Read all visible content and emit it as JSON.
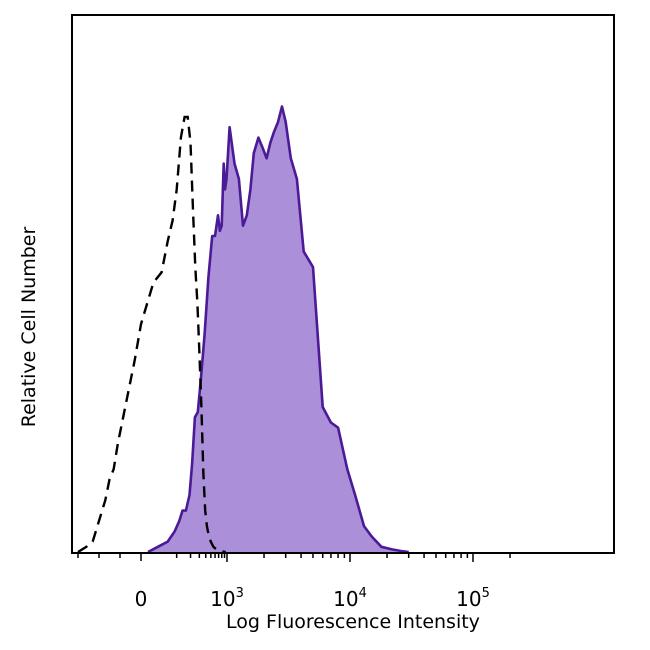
{
  "chart_data": {
    "type": "area",
    "title": "",
    "xlabel": "Log Fluorescence Intensity",
    "ylabel": "Relative Cell Number",
    "x_scale": "biexponential",
    "xlim": [
      -300,
      200000
    ],
    "ylim": [
      0,
      100
    ],
    "grid": false,
    "legend": "none",
    "x_ticks": [
      {
        "value": 0,
        "base": "0",
        "exp": ""
      },
      {
        "value": 1000,
        "base": "10",
        "exp": "3"
      },
      {
        "value": 10000,
        "base": "10",
        "exp": "4"
      },
      {
        "value": 100000,
        "base": "10",
        "exp": "5"
      }
    ],
    "colors": {
      "stained_fill": "#ab8fd9",
      "stained_line": "#4b1a96",
      "control_line": "#000000"
    },
    "series": [
      {
        "style": "filled-solid",
        "x": [
          10,
          30,
          60,
          90,
          115,
          135,
          160,
          190,
          215,
          245,
          280,
          320,
          380,
          450,
          530,
          600,
          680,
          740,
          800,
          870,
          920,
          980,
          1050,
          1150,
          1250,
          1350,
          1450,
          1550,
          1650,
          1800,
          1950,
          2100,
          2250,
          2400,
          2600,
          2800,
          3000,
          3300,
          3700,
          4200,
          5000,
          6000,
          7000,
          8000,
          9500,
          11000,
          13000,
          15000,
          18000,
          22000,
          26000,
          30000
        ],
        "y": [
          0,
          1,
          2,
          4,
          6,
          8,
          8,
          11,
          17,
          26,
          27,
          33,
          42,
          53,
          61,
          61,
          65,
          62,
          63,
          75,
          70,
          72,
          82,
          75,
          72,
          63,
          65,
          70,
          77,
          80,
          78,
          76,
          79,
          81,
          83,
          86,
          83,
          76,
          72,
          58,
          55,
          28,
          25,
          24,
          16,
          11,
          5,
          3,
          1,
          0.5,
          0.2,
          0
        ]
      },
      {
        "style": "dashed-line",
        "x": [
          -300,
          -260,
          -230,
          -200,
          -170,
          -150,
          -130,
          -110,
          -90,
          -60,
          -30,
          0,
          20,
          40,
          60,
          80,
          100,
          125,
          150,
          175,
          200,
          225,
          250,
          275,
          300,
          330,
          360,
          390,
          420,
          460,
          500,
          560,
          640,
          740,
          850,
          950
        ],
        "y": [
          0,
          1,
          2,
          6,
          10,
          14,
          16,
          21,
          25,
          31,
          37,
          44,
          52,
          54,
          60,
          64,
          70,
          80,
          84,
          84,
          79,
          66,
          55,
          48,
          39,
          28,
          15,
          8,
          5,
          3,
          2,
          1,
          0.5,
          0.3,
          0.1,
          0
        ]
      }
    ]
  }
}
